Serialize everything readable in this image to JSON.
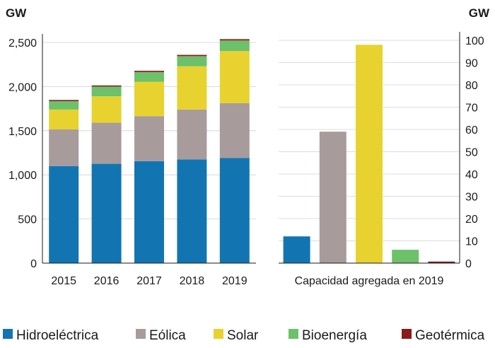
{
  "chart_data": [
    {
      "type": "bar",
      "stacked": true,
      "unit_label": "GW",
      "categories": [
        "2015",
        "2016",
        "2017",
        "2018",
        "2019"
      ],
      "ylim": [
        0,
        2500
      ],
      "yticks": [
        0,
        500,
        1000,
        1500,
        2000,
        2500
      ],
      "ytick_labels": [
        "0",
        "500",
        "1,000",
        "1,500",
        "2,000",
        "2,500"
      ],
      "grid": true,
      "series": [
        {
          "name": "Hidroeléctrica",
          "color": "#1275b2",
          "values": [
            1100,
            1125,
            1155,
            1175,
            1190
          ]
        },
        {
          "name": "Eólica",
          "color": "#a89b9c",
          "values": [
            415,
            465,
            510,
            565,
            622
          ]
        },
        {
          "name": "Solar",
          "color": "#e8d22f",
          "values": [
            225,
            300,
            390,
            490,
            590
          ]
        },
        {
          "name": "Bioenergía",
          "color": "#6cc16a",
          "values": [
            95,
            110,
            110,
            115,
            120
          ]
        },
        {
          "name": "Geotérmica",
          "color": "#8b1a1a",
          "values": [
            13,
            13,
            14,
            14,
            15
          ]
        }
      ]
    },
    {
      "type": "bar",
      "unit_label": "GW",
      "xlabel": "Capacidad agregada en 2019",
      "categories": [
        "Hidroeléctrica",
        "Eólica",
        "Solar",
        "Bioenergía",
        "Geotérmica"
      ],
      "values": [
        12,
        59,
        98,
        6,
        0.7
      ],
      "colors": [
        "#1275b2",
        "#a89b9c",
        "#e8d22f",
        "#6cc16a",
        "#8b1a1a"
      ],
      "ylim": [
        0,
        100
      ],
      "yticks": [
        0,
        10,
        20,
        30,
        40,
        50,
        60,
        70,
        80,
        90,
        100
      ],
      "grid": true
    }
  ],
  "legend": {
    "placement": "bottom",
    "items": [
      {
        "label": "Hidroeléctrica",
        "color": "#1275b2"
      },
      {
        "label": "Eólica",
        "color": "#a89b9c"
      },
      {
        "label": "Solar",
        "color": "#e8d22f"
      },
      {
        "label": "Bioenergía",
        "color": "#6cc16a"
      },
      {
        "label": "Geotérmica",
        "color": "#8b1a1a"
      }
    ]
  }
}
